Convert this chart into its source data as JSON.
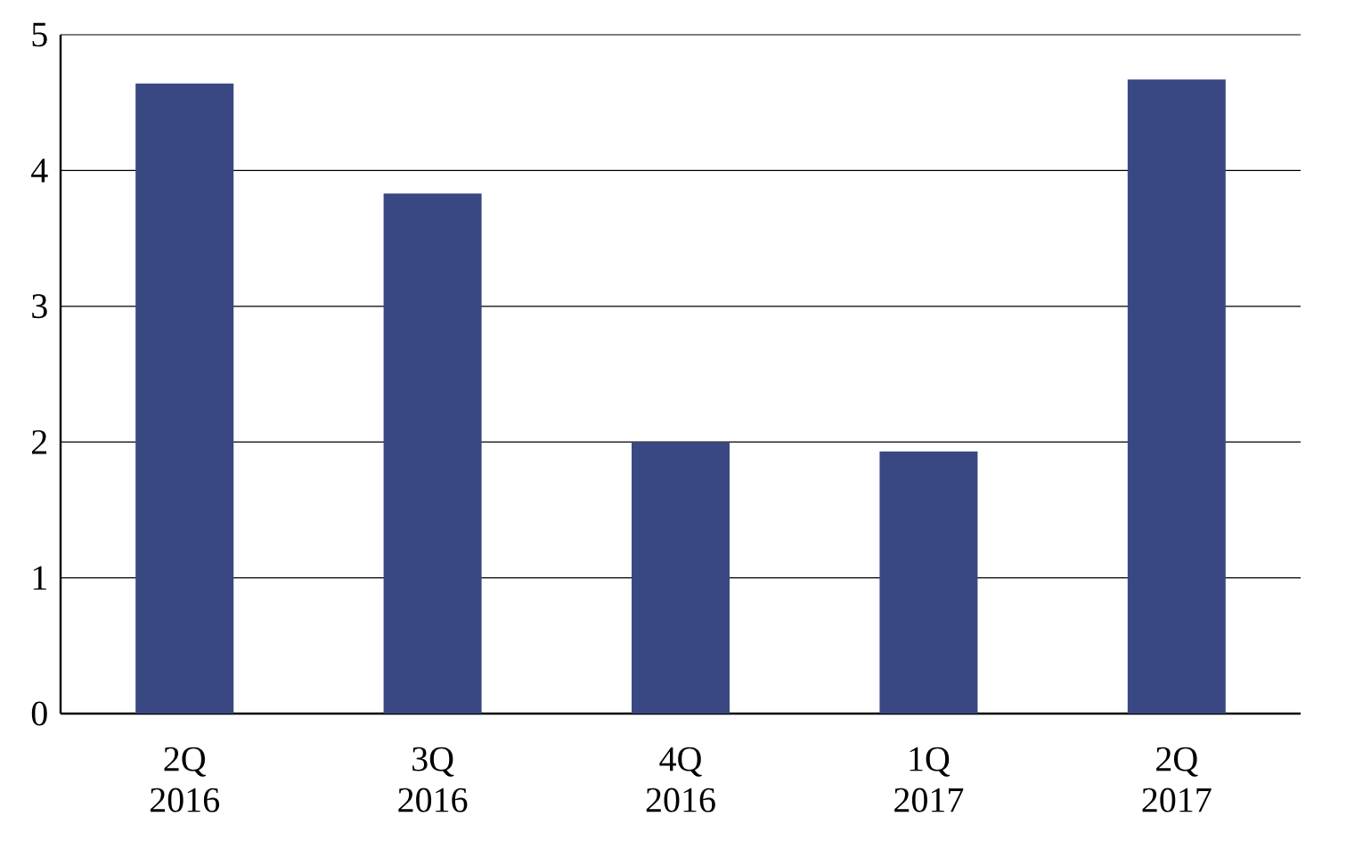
{
  "chart_data": {
    "type": "bar",
    "categories": [
      "2Q 2016",
      "3Q 2016",
      "4Q 2016",
      "1Q 2017",
      "2Q 2017"
    ],
    "values": [
      4.64,
      3.83,
      2.0,
      1.93,
      4.67
    ],
    "color": "#394882",
    "ylim": [
      0,
      5
    ],
    "yticks": [
      0,
      1,
      2,
      3,
      4,
      5
    ],
    "grid": "y"
  }
}
